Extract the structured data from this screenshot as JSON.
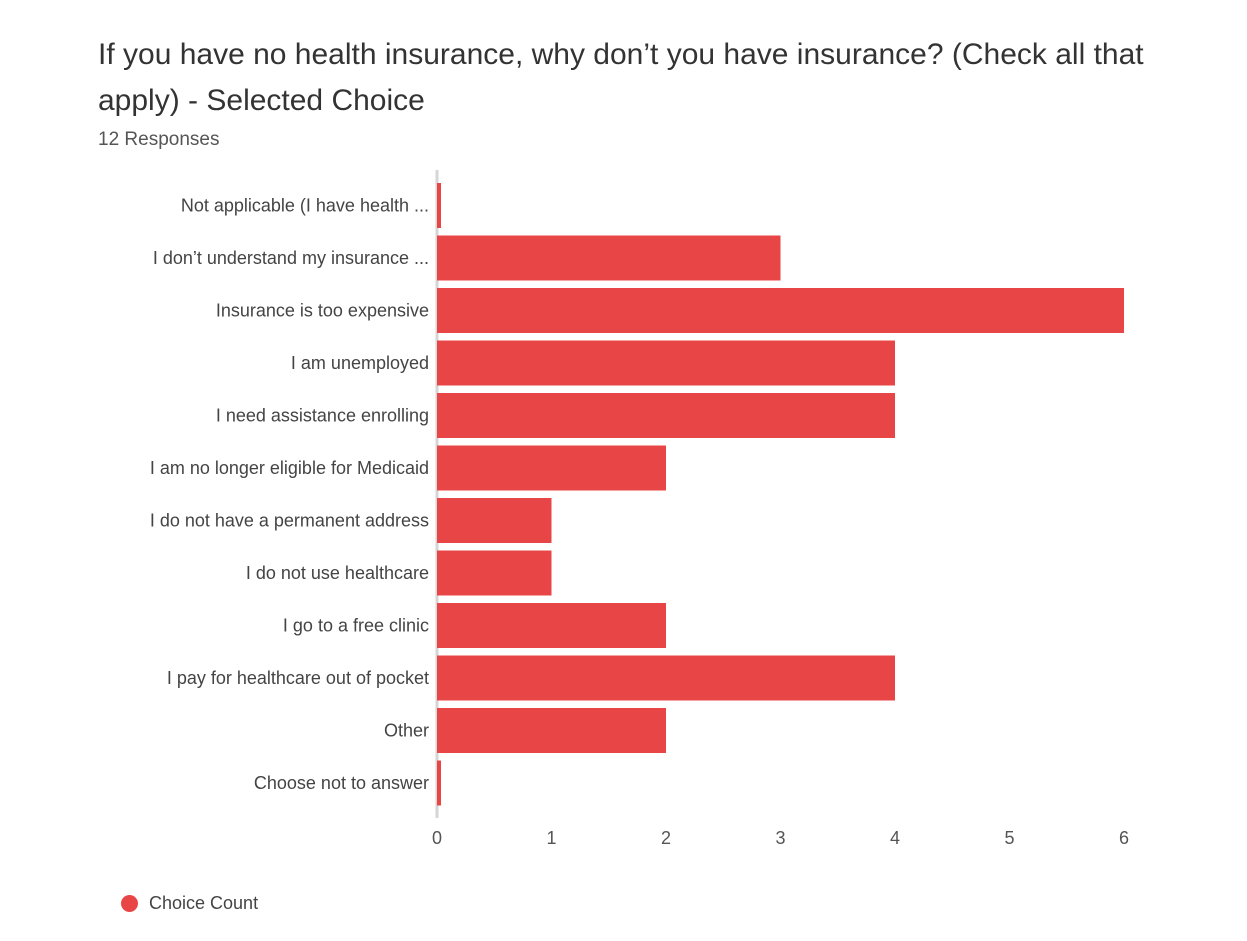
{
  "header": {
    "title": "If you have no health insurance, why don’t you have insurance? (Check all that apply) - Selected Choice",
    "responses": "12 Responses"
  },
  "legend": {
    "label": "Choice Count"
  },
  "colors": {
    "bar": "#e84646",
    "axis": "#d6d6d6",
    "label": "#444444"
  },
  "chart_data": {
    "type": "bar",
    "orientation": "horizontal",
    "title": "If you have no health insurance, why don’t you have insurance? (Check all that apply) - Selected Choice",
    "subtitle": "12 Responses",
    "xlabel": "",
    "ylabel": "",
    "xlim": [
      0,
      6
    ],
    "x_ticks": [
      0,
      1,
      2,
      3,
      4,
      5,
      6
    ],
    "grid": false,
    "legend_position": "bottom-left",
    "categories": [
      "Not applicable (I have health ...",
      "I don’t understand my insurance ...",
      "Insurance is too expensive",
      "I am unemployed",
      "I need assistance enrolling",
      "I am no longer eligible for Medicaid",
      "I do not have a permanent address",
      "I do not use healthcare",
      "I go to a free clinic",
      "I pay for healthcare out of pocket",
      "Other",
      "Choose not to answer"
    ],
    "series": [
      {
        "name": "Choice Count",
        "values": [
          0,
          3,
          6,
          4,
          4,
          2,
          1,
          1,
          2,
          4,
          2,
          0
        ]
      }
    ]
  }
}
